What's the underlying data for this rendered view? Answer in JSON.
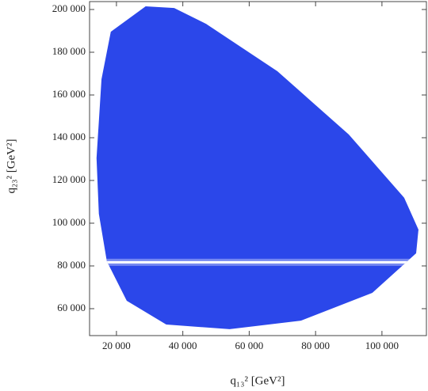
{
  "chart_data": {
    "type": "region",
    "x_label": "q₁₃² [GeV²]",
    "y_label": "q₂₃² [GeV²]",
    "x": [
      28800,
      18300,
      15500,
      14000,
      14700,
      17100,
      23100,
      35000,
      54100,
      75600,
      97100,
      110300,
      111000,
      106700,
      90000,
      68500,
      47000,
      37400
    ],
    "y": [
      201500,
      189600,
      167400,
      130400,
      104400,
      82200,
      63700,
      52600,
      50400,
      54400,
      67400,
      85900,
      97000,
      111900,
      141500,
      171100,
      193300,
      200700
    ],
    "color": "#2b47ea",
    "band": {
      "y": 81700,
      "color": "#ffffff"
    },
    "xlim": [
      11900,
      113400
    ],
    "ylim": [
      47400,
      203700
    ],
    "xticks": [
      {
        "value": 20000,
        "label": "20 000"
      },
      {
        "value": 40000,
        "label": "40 000"
      },
      {
        "value": 60000,
        "label": "60 000"
      },
      {
        "value": 80000,
        "label": "80 000"
      },
      {
        "value": 100000,
        "label": "100 000"
      }
    ],
    "yticks": [
      {
        "value": 60000,
        "label": "60 000"
      },
      {
        "value": 80000,
        "label": "80 000"
      },
      {
        "value": 100000,
        "label": "100 000"
      },
      {
        "value": 120000,
        "label": "120 000"
      },
      {
        "value": 140000,
        "label": "140 000"
      },
      {
        "value": 160000,
        "label": "160 000"
      },
      {
        "value": 180000,
        "label": "180 000"
      },
      {
        "value": 200000,
        "label": "200 000"
      }
    ]
  }
}
